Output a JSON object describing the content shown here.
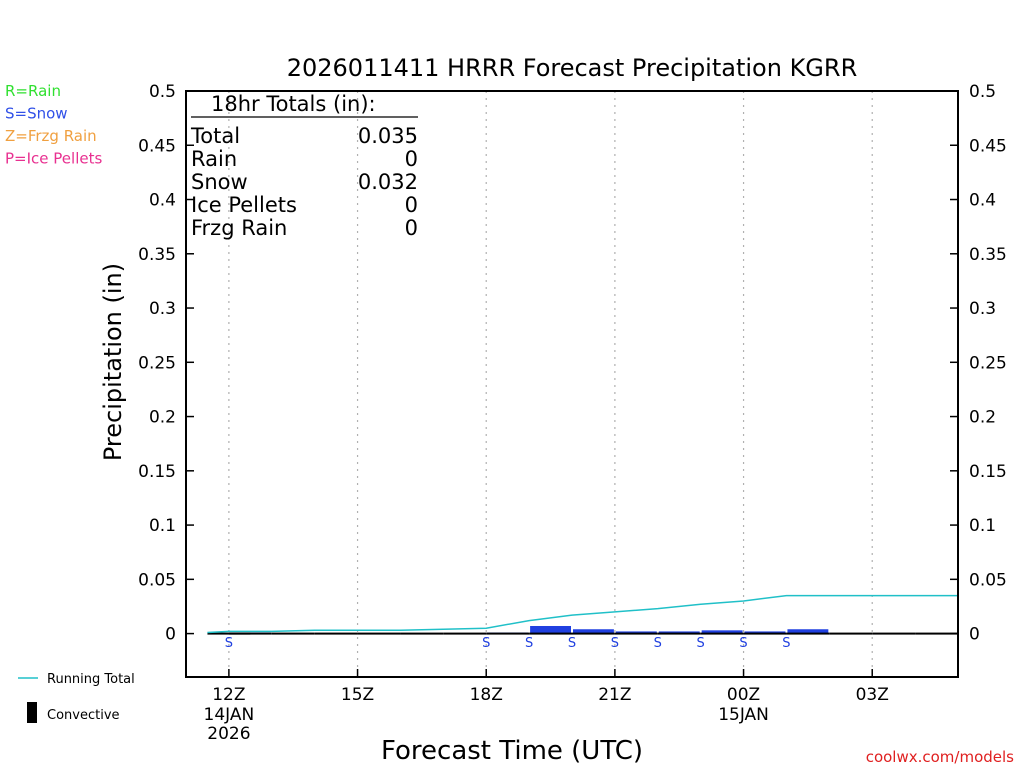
{
  "chart_data": {
    "type": "bar",
    "title": "2026011411 HRRR Forecast Precipitation KGRR",
    "xlabel": "Forecast Time (UTC)",
    "ylabel": "Precipitation (in)",
    "ylim": [
      -0.04,
      0.5
    ],
    "y_ticks": [
      0,
      0.05,
      0.1,
      0.15,
      0.2,
      0.25,
      0.3,
      0.35,
      0.4,
      0.45,
      0.5
    ],
    "y_tick_labels": [
      "0",
      "0.05",
      "0.1",
      "0.15",
      "0.2",
      "0.25",
      "0.3",
      "0.35",
      "0.4",
      "0.45",
      "0.5"
    ],
    "xlim_hours": [
      -1,
      17
    ],
    "x_ticks": [
      {
        "hour": 0,
        "label": "12Z",
        "sub1": "14JAN",
        "sub2": "2026"
      },
      {
        "hour": 3,
        "label": "15Z",
        "sub1": "",
        "sub2": ""
      },
      {
        "hour": 6,
        "label": "18Z",
        "sub1": "",
        "sub2": ""
      },
      {
        "hour": 9,
        "label": "21Z",
        "sub1": "",
        "sub2": ""
      },
      {
        "hour": 12,
        "label": "00Z",
        "sub1": "15JAN",
        "sub2": ""
      },
      {
        "hour": 15,
        "label": "03Z",
        "sub1": "",
        "sub2": ""
      }
    ],
    "series": [
      {
        "name": "Snow",
        "color": "#2040e0",
        "hours": [
          0,
          6,
          7,
          8,
          9,
          10,
          11,
          12,
          13
        ],
        "values": [
          0.001,
          0.001,
          0.007,
          0.004,
          0.002,
          0.002,
          0.003,
          0.002,
          0.004
        ]
      },
      {
        "name": "Running Total",
        "color": "#20c0c8",
        "hours": [
          -0.5,
          0,
          1,
          2,
          3,
          4,
          5,
          6,
          7,
          8,
          9,
          10,
          11,
          12,
          13,
          14,
          15,
          16,
          17
        ],
        "values": [
          0.001,
          0.002,
          0.002,
          0.003,
          0.003,
          0.003,
          0.004,
          0.005,
          0.012,
          0.017,
          0.02,
          0.023,
          0.027,
          0.03,
          0.035,
          0.035,
          0.035,
          0.035,
          0.035
        ]
      }
    ],
    "convective_hours": [
      -0.5,
      0,
      1,
      2,
      3,
      4,
      5,
      6,
      7,
      8,
      9,
      10,
      11,
      12,
      13,
      14,
      15,
      16
    ],
    "precip_type_markers": {
      "letter": "S",
      "color": "#2040e0",
      "hours": [
        0,
        6,
        7,
        8,
        9,
        10,
        11,
        12,
        13
      ]
    },
    "type_legend": [
      {
        "text": "R=Rain",
        "color": "#30e030"
      },
      {
        "text": "S=Snow",
        "color": "#3050e8"
      },
      {
        "text": "Z=Frzg Rain",
        "color": "#f0a040"
      },
      {
        "text": "P=Ice Pellets",
        "color": "#e83090"
      }
    ],
    "totals_box": {
      "heading": "18hr Totals (in):",
      "rows": [
        {
          "label": "Total",
          "value": "0.035"
        },
        {
          "label": "Rain",
          "value": "0"
        },
        {
          "label": "Snow",
          "value": "0.032"
        },
        {
          "label": "Ice Pellets",
          "value": "0"
        },
        {
          "label": "Frzg Rain",
          "value": "0"
        }
      ]
    },
    "line_legend": [
      {
        "label": "Running Total",
        "color": "#20c0c8"
      },
      {
        "label": "Convective",
        "color": "#000000"
      }
    ]
  },
  "footer": {
    "credit": "coolwx.com/models"
  }
}
